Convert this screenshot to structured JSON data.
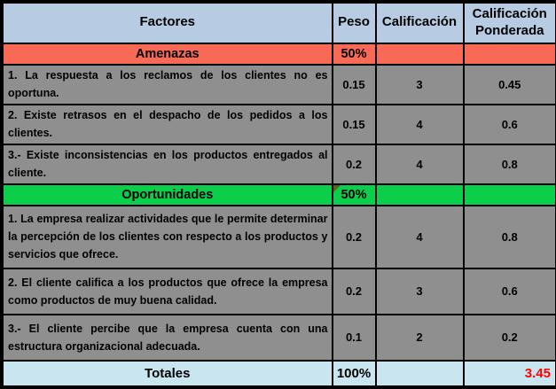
{
  "table": {
    "columns": [
      "Factores",
      "Peso",
      "Calificación",
      "Calificación Ponderada"
    ],
    "sections": [
      {
        "label": "Amenazas",
        "peso": "50%",
        "rows": [
          {
            "text": "1. La respuesta a los reclamos de los clientes no es oportuna.",
            "peso": "0.15",
            "calificacion": "3",
            "ponderada": "0.45"
          },
          {
            "text": "2. Existe retrasos en el despacho de los pedidos a los clientes.",
            "peso": "0.15",
            "calificacion": "4",
            "ponderada": "0.6"
          },
          {
            "text": "3.- Existe inconsistencias en los productos entregados al cliente.",
            "peso": "0.2",
            "calificacion": "4",
            "ponderada": "0.8"
          }
        ]
      },
      {
        "label": "Oportunidades",
        "peso": "50%",
        "rows": [
          {
            "text": "1. La empresa realizar actividades que le permite determinar la percepción de los clientes con respecto a los productos y servicios que ofrece.",
            "peso": "0.2",
            "calificacion": "4",
            "ponderada": "0.8"
          },
          {
            "text": "2. El cliente califica a los productos que ofrece la empresa como productos de muy buena calidad.",
            "peso": "0.2",
            "calificacion": "3",
            "ponderada": "0.6"
          },
          {
            "text": "3.- El cliente percibe que la empresa cuenta con una estructura organizacional adecuada.",
            "peso": "0.1",
            "calificacion": "2",
            "ponderada": "0.2"
          }
        ]
      }
    ],
    "totals": {
      "label": "Totales",
      "peso": "100%",
      "calificacion": "",
      "ponderada": "3.45"
    }
  },
  "colors": {
    "header_bg": "#B7CBE3",
    "threats_bg": "#F96A56",
    "opportunities_bg": "#0BCE4B",
    "factor_row_bg": "#8F8F8F",
    "totals_bg": "#C9E6F0",
    "total_value_color": "#FF0000",
    "border_color": "#000000",
    "corner_marker_color": "#55651F"
  }
}
